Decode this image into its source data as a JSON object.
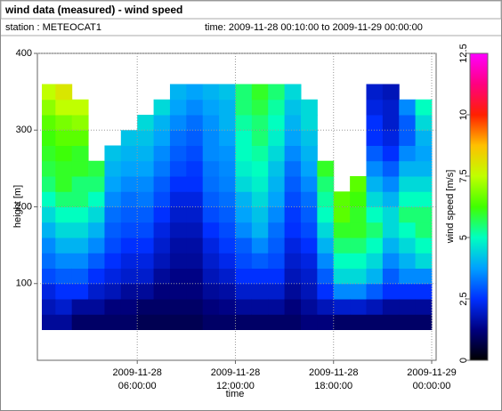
{
  "chart_data": {
    "type": "heatmap",
    "title": "wind data (measured) - wind speed",
    "station": "station : METEOCAT1",
    "period": "time: 2009-11-28 00:10:00 to 2009-11-29 00:00:00",
    "xlabel": "time",
    "ylabel": "height [m]",
    "colorbar_label": "wind speed [m/s]",
    "xlim": [
      "2009-11-28 00:10:00",
      "2009-11-29 00:00:00"
    ],
    "xticks": [
      "2009-11-28 06:00:00",
      "2009-11-28 12:00:00",
      "2009-11-28 18:00:00",
      "2009-11-29 00:00:00"
    ],
    "ylim": [
      0,
      400
    ],
    "yticks": [
      100,
      200,
      300,
      400
    ],
    "zlim": [
      0,
      12.5
    ],
    "zticks": [
      0,
      2.5,
      5,
      7.5,
      10,
      12.5
    ],
    "grid": true,
    "colors": [
      "#000000",
      "#000080",
      "#0030ff",
      "#00a0ff",
      "#00ffc0",
      "#40ff00",
      "#c0ff00",
      "#ffc000",
      "#ff2000",
      "#ff0080",
      "#ff00ff"
    ],
    "x": [
      "2009-11-28 00:10:00",
      "2009-11-28 01:00:00",
      "2009-11-28 02:00:00",
      "2009-11-28 03:00:00",
      "2009-11-28 04:00:00",
      "2009-11-28 05:00:00",
      "2009-11-28 06:00:00",
      "2009-11-28 07:00:00",
      "2009-11-28 08:00:00",
      "2009-11-28 09:00:00",
      "2009-11-28 10:00:00",
      "2009-11-28 11:00:00",
      "2009-11-28 12:00:00",
      "2009-11-28 13:00:00",
      "2009-11-28 14:00:00",
      "2009-11-28 15:00:00",
      "2009-11-28 16:00:00",
      "2009-11-28 17:00:00",
      "2009-11-28 18:00:00",
      "2009-11-28 19:00:00",
      "2009-11-28 20:00:00",
      "2009-11-28 21:00:00",
      "2009-11-28 22:00:00",
      "2009-11-28 23:00:00"
    ],
    "y_edges": [
      40,
      60,
      80,
      100,
      120,
      140,
      160,
      180,
      200,
      220,
      240,
      260,
      280,
      300,
      320,
      340,
      360
    ],
    "values": [
      [
        1.5,
        1.8,
        2.2,
        2.8,
        3.2,
        3.5,
        4,
        4.5,
        5,
        5.5,
        5.8,
        6,
        6.2,
        6.5,
        7,
        7.5
      ],
      [
        1.5,
        2,
        2.5,
        3,
        3.5,
        4,
        4.5,
        5,
        5.5,
        6,
        6,
        6.2,
        6.5,
        6.8,
        7.5,
        8
      ],
      [
        1,
        1.5,
        2.5,
        3,
        3.5,
        4,
        4.5,
        5,
        5.5,
        5.5,
        6,
        6,
        6.5,
        7,
        7.5,
        null
      ],
      [
        1,
        1.5,
        2,
        2.5,
        3,
        3.5,
        4,
        4.5,
        5,
        5.5,
        5.8,
        null,
        null,
        null,
        null,
        null
      ],
      [
        1,
        1.2,
        1.8,
        2.2,
        2.5,
        2.8,
        3,
        3.2,
        3.5,
        3.8,
        4,
        4.2,
        null,
        null,
        null,
        null
      ],
      [
        1,
        1.2,
        1.5,
        2,
        2.2,
        2.5,
        2.8,
        3,
        3.2,
        3.5,
        3.8,
        4,
        4.2,
        null,
        null,
        null
      ],
      [
        0.8,
        1,
        1.5,
        2,
        2.2,
        2.5,
        2.8,
        3,
        3.3,
        3.5,
        3.8,
        4,
        4.2,
        4.5,
        null,
        null
      ],
      [
        0.8,
        1,
        1.2,
        1.5,
        1.8,
        2,
        2.2,
        2.5,
        2.8,
        3,
        3.3,
        3.5,
        3.8,
        4,
        4.5,
        null
      ],
      [
        0.8,
        1,
        1.2,
        1.3,
        1.5,
        1.6,
        1.8,
        2,
        2.2,
        2.5,
        2.8,
        3,
        3.2,
        3.5,
        3.8,
        4
      ],
      [
        0.8,
        1,
        1.2,
        1.3,
        1.5,
        1.6,
        1.8,
        2,
        2.2,
        2.5,
        2.6,
        2.8,
        3,
        3.2,
        3.5,
        3.8
      ],
      [
        1,
        1.2,
        1.5,
        1.8,
        2,
        2.2,
        2.5,
        2.8,
        3,
        3.2,
        3.3,
        3.5,
        3.5,
        3.6,
        3.8,
        4
      ],
      [
        1,
        1.3,
        1.6,
        2,
        2.3,
        2.6,
        2.8,
        3,
        3.2,
        3.4,
        3.5,
        3.6,
        3.8,
        4,
        4,
        4.2
      ],
      [
        1,
        1.5,
        2,
        2.5,
        2.8,
        3,
        3.5,
        3.8,
        4,
        4.5,
        4.8,
        5,
        5,
        5.2,
        5.5,
        5.5
      ],
      [
        1,
        1.5,
        2,
        2.5,
        3,
        3.5,
        4,
        4.2,
        4.5,
        4.8,
        5,
        5.2,
        5.5,
        5.5,
        5.8,
        6
      ],
      [
        1,
        1.5,
        2,
        2.5,
        2.8,
        3,
        3.2,
        3.5,
        3.8,
        4,
        4.2,
        4.5,
        4.8,
        5,
        5.2,
        5.5
      ],
      [
        1,
        1.2,
        1.5,
        1.8,
        2,
        2.2,
        2.5,
        2.6,
        2.8,
        3,
        3.2,
        3.5,
        3.8,
        4,
        4.2,
        4.5
      ],
      [
        1.2,
        1.5,
        1.8,
        2,
        2.2,
        2.5,
        2.8,
        3,
        3.2,
        3.5,
        3.8,
        4,
        4.2,
        4.5,
        4.5,
        null
      ],
      [
        1.2,
        1.8,
        2.5,
        3,
        3.5,
        4,
        4.5,
        5,
        5.2,
        5.5,
        6,
        null,
        null,
        null,
        null,
        null
      ],
      [
        1,
        2,
        3.5,
        4.5,
        5,
        5.5,
        6,
        6.5,
        6.5,
        null,
        null,
        null,
        null,
        null,
        null,
        null
      ],
      [
        1,
        2,
        3.5,
        4.5,
        5,
        5.5,
        6,
        6,
        6.2,
        6.5,
        null,
        null,
        null,
        null,
        null,
        null
      ],
      [
        1,
        1.8,
        3,
        4,
        4.5,
        5,
        5.5,
        5,
        4.5,
        4,
        3.5,
        3,
        2.5,
        2.5,
        2.2,
        2
      ],
      [
        1,
        1.5,
        2.5,
        3,
        3.5,
        4,
        4.5,
        4.5,
        4,
        3.5,
        3,
        2.5,
        2.2,
        2,
        2,
        1.8
      ],
      [
        1,
        1.5,
        2.5,
        3.5,
        4,
        4.5,
        5,
        5.5,
        5,
        4.5,
        4,
        3.5,
        3,
        3,
        3.5,
        null
      ],
      [
        1,
        1.5,
        2.5,
        3.5,
        4.5,
        5,
        5.5,
        5.5,
        5,
        4.5,
        4,
        3.8,
        4,
        4.5,
        5,
        null
      ]
    ]
  }
}
